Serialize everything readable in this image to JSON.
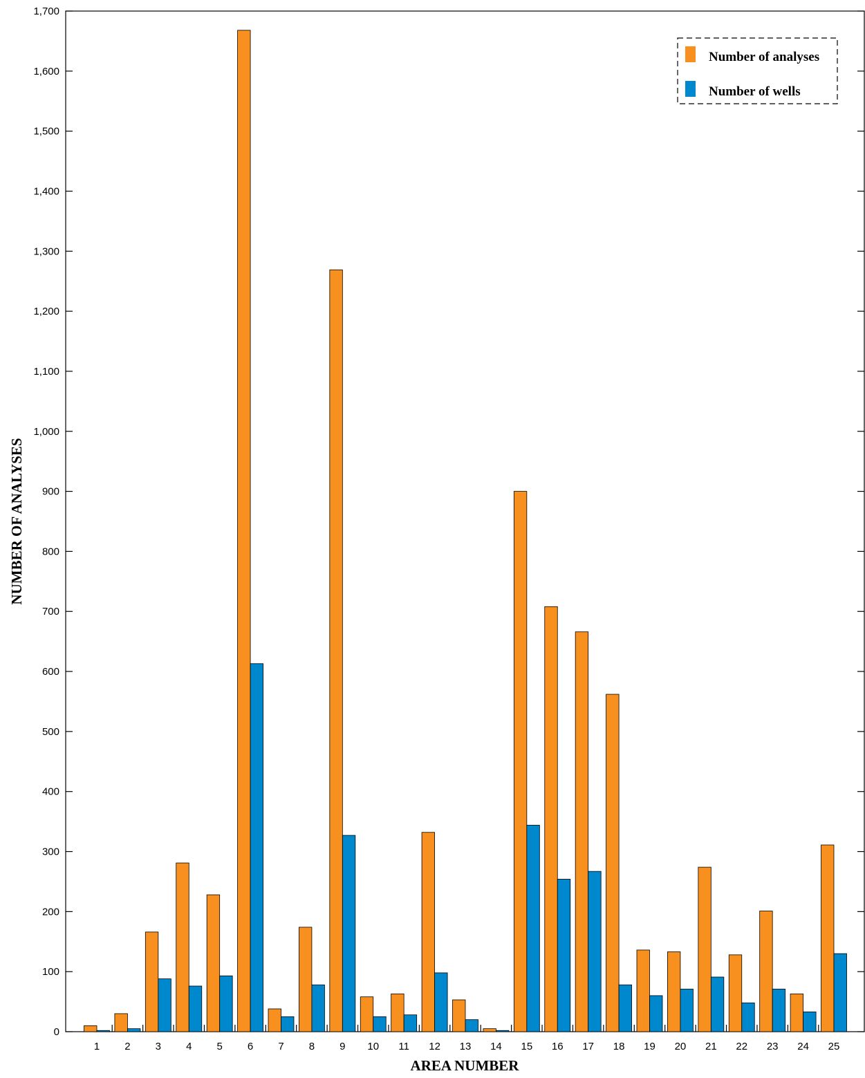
{
  "chart_data": {
    "type": "bar",
    "xlabel": "AREA NUMBER",
    "ylabel": "NUMBER OF ANALYSES",
    "ylim": [
      0,
      1700
    ],
    "yticks": [
      0,
      100,
      200,
      300,
      400,
      500,
      600,
      700,
      800,
      900,
      1000,
      1100,
      1200,
      1300,
      1400,
      1500,
      1600,
      1700
    ],
    "ytick_labels": [
      "0",
      "100",
      "200",
      "300",
      "400",
      "500",
      "600",
      "700",
      "800",
      "900",
      "1,000",
      "1,100",
      "1,200",
      "1,300",
      "1,400",
      "1,500",
      "1,600",
      "1,700"
    ],
    "categories": [
      "1",
      "2",
      "3",
      "4",
      "5",
      "6",
      "7",
      "8",
      "9",
      "10",
      "11",
      "12",
      "13",
      "14",
      "15",
      "16",
      "17",
      "18",
      "19",
      "20",
      "21",
      "22",
      "23",
      "24",
      "25"
    ],
    "series": [
      {
        "name": "Number of analyses",
        "color": "#F7901E",
        "values": [
          10,
          30,
          166,
          281,
          228,
          1668,
          38,
          174,
          1269,
          58,
          63,
          332,
          53,
          5,
          900,
          708,
          666,
          562,
          136,
          133,
          274,
          128,
          201,
          63,
          311
        ]
      },
      {
        "name": "Number of wells",
        "color": "#0088CE",
        "values": [
          2,
          5,
          88,
          76,
          93,
          613,
          25,
          78,
          327,
          25,
          28,
          98,
          20,
          2,
          344,
          254,
          267,
          78,
          60,
          71,
          91,
          48,
          71,
          33,
          130
        ]
      }
    ],
    "grid": false,
    "legend": "top-right",
    "legend_border": "dashed"
  }
}
